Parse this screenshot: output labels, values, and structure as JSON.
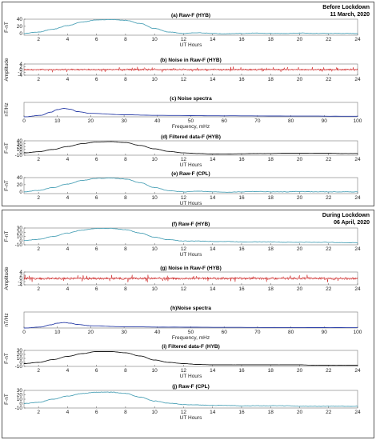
{
  "sections": [
    {
      "label": "Before Lockdown",
      "date": "11 March, 2020"
    },
    {
      "label": "During Lockdown",
      "date": "06 April, 2020"
    }
  ],
  "chart_data": [
    {
      "id": "a",
      "type": "line",
      "title": "(a) Raw-F (HYB)",
      "xlabel": "UT Hours",
      "ylabel": "F-nT",
      "color": "#4fa3b8",
      "xlim": [
        1,
        24
      ],
      "ylim": [
        -5,
        40
      ],
      "xticks": [
        2,
        4,
        6,
        8,
        10,
        12,
        14,
        16,
        18,
        20,
        22,
        24
      ],
      "yticks": [
        0,
        20,
        40
      ],
      "series": [
        {
          "x": [
            1,
            2,
            3,
            4,
            5,
            6,
            7,
            8,
            9,
            10,
            11,
            12,
            13,
            14,
            15,
            16,
            17,
            18,
            19,
            20,
            21,
            22,
            23,
            24
          ],
          "values": [
            0,
            4,
            12,
            22,
            32,
            38,
            39,
            37,
            28,
            14,
            4,
            0,
            2,
            0,
            -1,
            0,
            1,
            0,
            0,
            1,
            0,
            0,
            0,
            0
          ]
        }
      ]
    },
    {
      "id": "b",
      "type": "line",
      "title": "(b) Noise in Raw-F (HYB)",
      "xlabel": "",
      "ylabel": "Amplitude",
      "color": "#cc1f1f",
      "noise": true,
      "noise_amp": 2.2,
      "xlim": [
        1,
        24
      ],
      "ylim": [
        -4,
        4
      ],
      "xticks": [
        2,
        4,
        6,
        8,
        10,
        12,
        14,
        16,
        18,
        20,
        22,
        24
      ],
      "yticks": [
        -4,
        -2,
        0,
        2,
        4
      ]
    },
    {
      "id": "c",
      "type": "line",
      "title": "(c) Noise spectra",
      "xlabel": "Frequency, mHz",
      "ylabel": "nT/Hz",
      "color": "#2b3fa8",
      "xlim": [
        0,
        100
      ],
      "ylim": [
        0,
        5
      ],
      "xticks": [
        0,
        10,
        20,
        30,
        40,
        50,
        60,
        70,
        80,
        90,
        100
      ],
      "yticks": [],
      "series": [
        {
          "x": [
            0,
            5,
            8,
            10,
            12,
            14,
            16,
            20,
            30,
            40,
            60,
            80,
            100
          ],
          "values": [
            0,
            0.5,
            1.6,
            2.5,
            2.9,
            2.6,
            1.8,
            1.2,
            0.7,
            0.5,
            0.35,
            0.25,
            0.2
          ]
        }
      ]
    },
    {
      "id": "d",
      "type": "line",
      "title": "(d) Filtered data-F (HYB)",
      "xlabel": "UT Hours",
      "ylabel": "F-nT",
      "color": "#1a1a1a",
      "xlim": [
        1,
        24
      ],
      "ylim": [
        -10,
        40
      ],
      "xticks": [
        2,
        4,
        6,
        8,
        10,
        12,
        14,
        16,
        18,
        20,
        22,
        24
      ],
      "yticks": [
        -10,
        0,
        10,
        20,
        30,
        40
      ],
      "series": [
        {
          "x": [
            1,
            2,
            3,
            4,
            5,
            6,
            7,
            8,
            9,
            10,
            11,
            12,
            13,
            14,
            15,
            16,
            17,
            18,
            19,
            20,
            21,
            22,
            23,
            24
          ],
          "values": [
            -2,
            2,
            10,
            20,
            30,
            36,
            37,
            34,
            24,
            12,
            3,
            -2,
            -4,
            -6,
            -6,
            -5,
            -4,
            -4,
            -3,
            -3,
            -3,
            -3,
            -4,
            -4
          ]
        }
      ]
    },
    {
      "id": "e",
      "type": "line",
      "title": "(e) Raw-F (CPL)",
      "xlabel": "UT Hours",
      "ylabel": "F-nT",
      "color": "#4fa3b8",
      "xlim": [
        1,
        24
      ],
      "ylim": [
        -5,
        40
      ],
      "xticks": [
        2,
        4,
        6,
        8,
        10,
        12,
        14,
        16,
        18,
        20,
        22,
        24
      ],
      "yticks": [
        0,
        20,
        40
      ],
      "series": [
        {
          "x": [
            1,
            2,
            3,
            4,
            5,
            6,
            7,
            8,
            9,
            10,
            11,
            12,
            13,
            14,
            15,
            16,
            17,
            18,
            19,
            20,
            21,
            22,
            23,
            24
          ],
          "values": [
            0,
            4,
            12,
            22,
            32,
            38,
            39,
            36,
            26,
            12,
            3,
            0,
            2,
            0,
            -1,
            0,
            1,
            0,
            0,
            1,
            0,
            0,
            0,
            0
          ]
        }
      ]
    },
    {
      "id": "f",
      "type": "line",
      "title": "(f) Raw-F (HYB)",
      "xlabel": "UT Hours",
      "ylabel": "F-nT",
      "color": "#4fa3b8",
      "xlim": [
        1,
        24
      ],
      "ylim": [
        -10,
        30
      ],
      "xticks": [
        2,
        4,
        6,
        8,
        10,
        12,
        14,
        16,
        18,
        20,
        22,
        24
      ],
      "yticks": [
        -10,
        0,
        10,
        20,
        30
      ],
      "series": [
        {
          "x": [
            1,
            2,
            3,
            4,
            5,
            6,
            7,
            8,
            9,
            10,
            11,
            12,
            13,
            14,
            15,
            16,
            17,
            18,
            19,
            20,
            21,
            22,
            23,
            24
          ],
          "values": [
            0,
            3,
            10,
            18,
            25,
            29,
            29,
            26,
            18,
            8,
            2,
            -1,
            -1,
            -2,
            -2,
            -3,
            -3,
            -3,
            -4,
            -4,
            -4,
            -4,
            -5,
            -5
          ]
        }
      ]
    },
    {
      "id": "g",
      "type": "line",
      "title": "(g) Noise in Raw-F (HYB)",
      "xlabel": "",
      "ylabel": "Amplitude",
      "color": "#cc1f1f",
      "noise": true,
      "noise_amp": 2.6,
      "xlim": [
        1,
        24
      ],
      "ylim": [
        -4,
        4
      ],
      "xticks": [
        2,
        4,
        6,
        8,
        10,
        12,
        14,
        16,
        18,
        20,
        22,
        24
      ],
      "yticks": [
        -4,
        -2,
        0,
        2,
        4
      ]
    },
    {
      "id": "h",
      "type": "line",
      "title": "(h)Noise spectra",
      "xlabel": "Frequency, mHz",
      "ylabel": "nT/Hz",
      "color": "#2b3fa8",
      "xlim": [
        0,
        100
      ],
      "ylim": [
        0,
        5
      ],
      "xticks": [
        0,
        10,
        20,
        30,
        40,
        50,
        60,
        70,
        80,
        90,
        100
      ],
      "yticks": [],
      "series": [
        {
          "x": [
            0,
            5,
            8,
            10,
            12,
            14,
            16,
            20,
            30,
            40,
            60,
            80,
            100
          ],
          "values": [
            0,
            0.3,
            1.0,
            1.5,
            1.7,
            1.5,
            1.1,
            0.7,
            0.4,
            0.3,
            0.2,
            0.15,
            0.1
          ]
        }
      ]
    },
    {
      "id": "i",
      "type": "line",
      "title": "(i) Filtered data-F (HYB)",
      "xlabel": "UT Hours",
      "ylabel": "F-nT",
      "color": "#1a1a1a",
      "xlim": [
        1,
        24
      ],
      "ylim": [
        -10,
        30
      ],
      "xticks": [
        2,
        4,
        6,
        8,
        10,
        12,
        14,
        16,
        18,
        20,
        22,
        24
      ],
      "yticks": [
        -10,
        0,
        10,
        20,
        30
      ],
      "series": [
        {
          "x": [
            1,
            2,
            3,
            4,
            5,
            6,
            7,
            8,
            9,
            10,
            11,
            12,
            13,
            14,
            15,
            16,
            17,
            18,
            19,
            20,
            21,
            22,
            23,
            24
          ],
          "values": [
            -3,
            0,
            7,
            15,
            22,
            27,
            27,
            24,
            16,
            6,
            0,
            -3,
            -5,
            -6,
            -6,
            -6,
            -6,
            -6,
            -6,
            -6,
            -7,
            -7,
            -7,
            -7
          ]
        }
      ]
    },
    {
      "id": "j",
      "type": "line",
      "title": "(j) Raw-F (CPL)",
      "xlabel": "UT Hours",
      "ylabel": "F-nT",
      "color": "#4fa3b8",
      "xlim": [
        1,
        24
      ],
      "ylim": [
        -10,
        30
      ],
      "xticks": [
        2,
        4,
        6,
        8,
        10,
        12,
        14,
        16,
        18,
        20,
        22,
        24
      ],
      "yticks": [
        -10,
        0,
        10,
        20,
        30
      ],
      "series": [
        {
          "x": [
            1,
            2,
            3,
            4,
            5,
            6,
            7,
            8,
            9,
            10,
            11,
            12,
            13,
            14,
            15,
            16,
            17,
            18,
            19,
            20,
            21,
            22,
            23,
            24
          ],
          "values": [
            0,
            3,
            10,
            17,
            23,
            26,
            26,
            23,
            15,
            6,
            1,
            -2,
            -3,
            -4,
            -4,
            -5,
            -5,
            -5,
            -5,
            -6,
            -6,
            -6,
            -6,
            -6
          ]
        }
      ]
    }
  ]
}
